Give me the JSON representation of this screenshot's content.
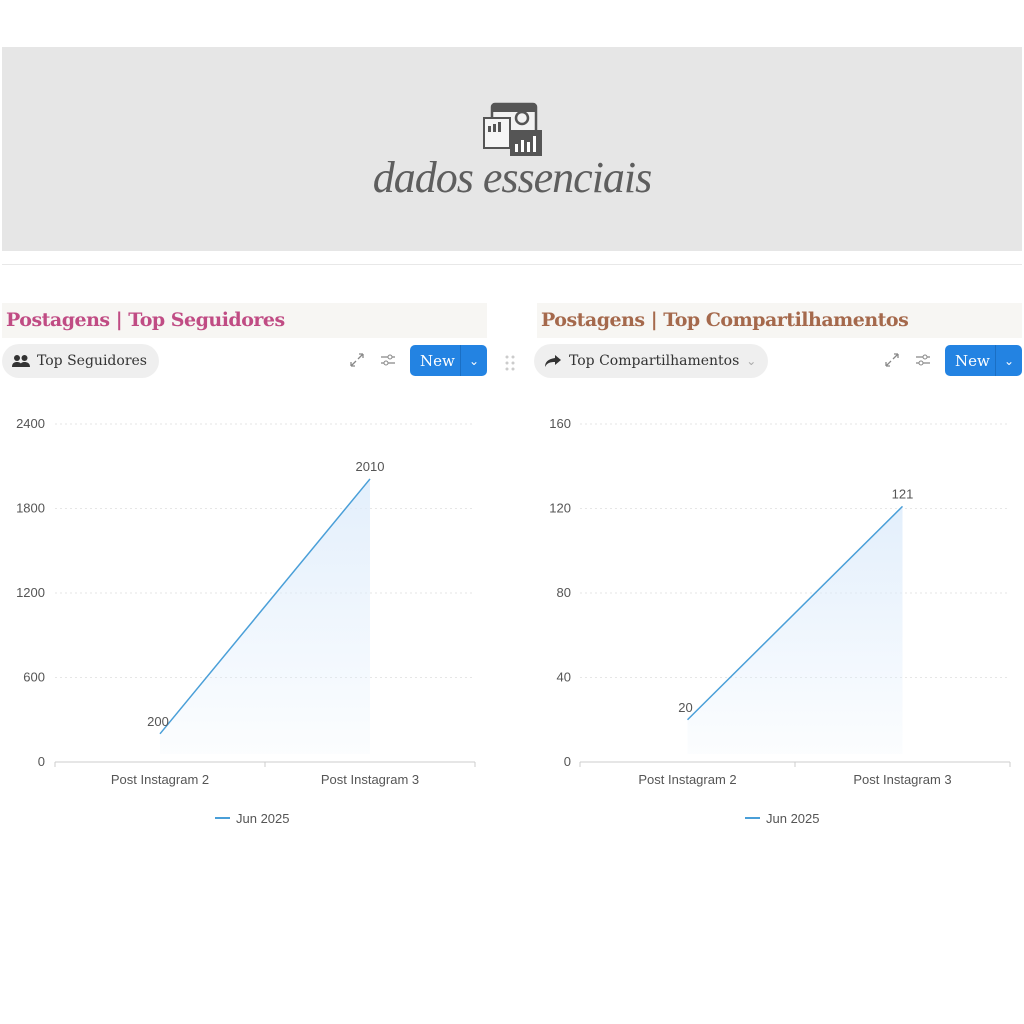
{
  "cover": {
    "title": "dados essenciais",
    "icon": "dashboard-analytics-icon"
  },
  "panels": [
    {
      "title": "Postagens | Top Seguidores",
      "title_color": "#c04c84",
      "view_label": "Top Seguidores",
      "view_icon": "people-icon",
      "new_label": "New"
    },
    {
      "title": "Postagens | Top Compartilhamentos",
      "title_color": "#a5694c",
      "view_label": "Top Compartilhamentos",
      "view_icon": "share-arrow-icon",
      "new_label": "New"
    }
  ],
  "chart_data": [
    {
      "type": "line",
      "categories": [
        "Post Instagram 2",
        "Post Instagram 3"
      ],
      "series": [
        {
          "name": "Jun 2025",
          "values": [
            200,
            2010
          ]
        }
      ],
      "ylim": [
        0,
        2400
      ],
      "yticks": [
        "0",
        "600",
        "1200",
        "1800",
        "2400"
      ],
      "grid": true,
      "legend": "bottom",
      "color": "#4a9fd8"
    },
    {
      "type": "line",
      "categories": [
        "Post Instagram 2",
        "Post Instagram 3"
      ],
      "series": [
        {
          "name": "Jun 2025",
          "values": [
            20,
            121
          ]
        }
      ],
      "ylim": [
        0,
        160
      ],
      "yticks": [
        "0",
        "40",
        "80",
        "120",
        "160"
      ],
      "grid": true,
      "legend": "bottom",
      "color": "#4a9fd8"
    }
  ]
}
